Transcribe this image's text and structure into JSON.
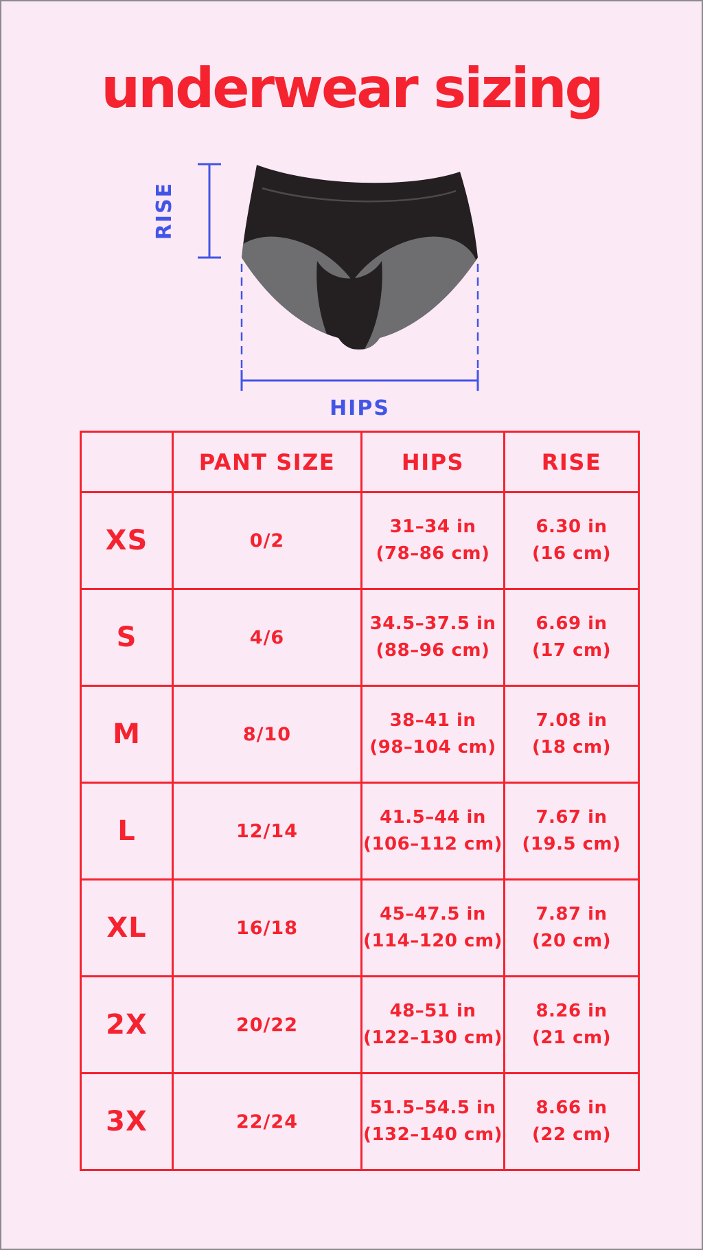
{
  "title": "underwear sizing",
  "diagram": {
    "rise_label": "RISE",
    "hips_label": "HIPS"
  },
  "table": {
    "headers": [
      "",
      "PANT SIZE",
      "HIPS",
      "RISE"
    ],
    "rows": [
      {
        "size": "XS",
        "pant_size": "0/2",
        "hips": [
          "31–34 in",
          "(78–86 cm)"
        ],
        "rise": [
          "6.30 in",
          "(16 cm)"
        ]
      },
      {
        "size": "S",
        "pant_size": "4/6",
        "hips": [
          "34.5–37.5 in",
          "(88–96 cm)"
        ],
        "rise": [
          "6.69 in",
          "(17 cm)"
        ]
      },
      {
        "size": "M",
        "pant_size": "8/10",
        "hips": [
          "38–41 in",
          "(98–104 cm)"
        ],
        "rise": [
          "7.08 in",
          "(18 cm)"
        ]
      },
      {
        "size": "L",
        "pant_size": "12/14",
        "hips": [
          "41.5–44 in",
          "(106–112 cm)"
        ],
        "rise": [
          "7.67 in",
          "(19.5 cm)"
        ]
      },
      {
        "size": "XL",
        "pant_size": "16/18",
        "hips": [
          "45–47.5 in",
          "(114–120 cm)"
        ],
        "rise": [
          "7.87 in",
          "(20 cm)"
        ]
      },
      {
        "size": "2X",
        "pant_size": "20/22",
        "hips": [
          "48–51 in",
          "(122–130 cm)"
        ],
        "rise": [
          "8.26 in",
          "(21 cm)"
        ]
      },
      {
        "size": "3X",
        "pant_size": "22/24",
        "hips": [
          "51.5–54.5 in",
          "(132–140 cm)"
        ],
        "rise": [
          "8.66 in",
          "(22 cm)"
        ]
      }
    ]
  },
  "chart_data": {
    "type": "table",
    "title": "underwear sizing",
    "columns": [
      "",
      "PANT SIZE",
      "HIPS",
      "RISE"
    ],
    "rows": [
      [
        "XS",
        "0/2",
        "31–34 in (78–86 cm)",
        "6.30 in (16 cm)"
      ],
      [
        "S",
        "4/6",
        "34.5–37.5 in (88–96 cm)",
        "6.69 in (17 cm)"
      ],
      [
        "M",
        "8/10",
        "38–41 in (98–104 cm)",
        "7.08 in (18 cm)"
      ],
      [
        "L",
        "12/14",
        "41.5–44 in (106–112 cm)",
        "7.67 in (19.5 cm)"
      ],
      [
        "XL",
        "16/18",
        "45–47.5 in (114–120 cm)",
        "7.87 in (20 cm)"
      ],
      [
        "2X",
        "20/22",
        "48–51 in (122–130 cm)",
        "8.26 in (21 cm)"
      ],
      [
        "3X",
        "22/24",
        "51.5–54.5 in (132–140 cm)",
        "8.66 in (22 cm)"
      ]
    ]
  },
  "colors": {
    "background_pink": "#fce9f6",
    "accent_red": "#f4232f",
    "measure_blue": "#4355e6",
    "garment_black": "#241f21",
    "garment_gray": "#6e6e71",
    "frame_gray": "#8d8a8d"
  }
}
